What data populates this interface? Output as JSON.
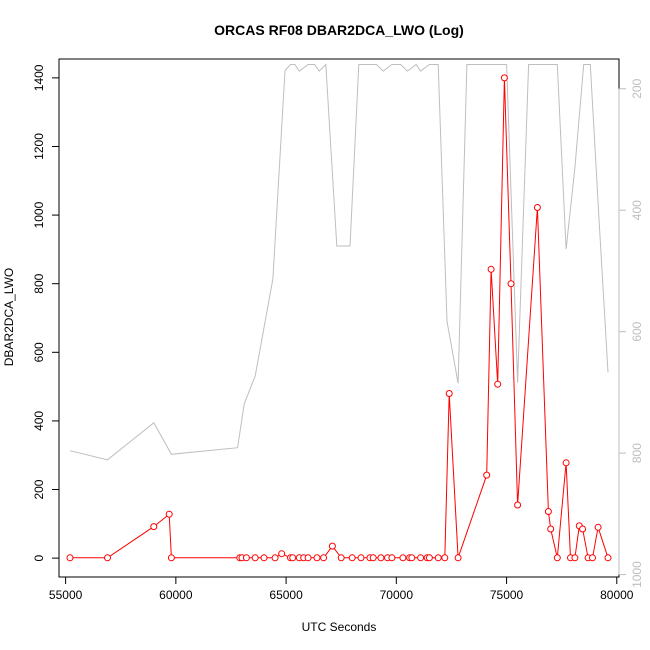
{
  "chart_data": {
    "type": "line",
    "title": "ORCAS RF08 DBAR2DCA_LWO (Log)",
    "xlabel": "UTC Seconds",
    "ylabel": "DBAR2DCA_LWO",
    "xlim": [
      54700,
      80100
    ],
    "ylim": [
      -55,
      1455
    ],
    "x_ticks": [
      "55000",
      "60000",
      "65000",
      "70000",
      "75000",
      "80000"
    ],
    "y_ticks": [
      "0",
      "200",
      "400",
      "600",
      "800",
      "1000",
      "1200",
      "1400"
    ],
    "y2_ticks": [
      "200",
      "400",
      "600",
      "800",
      "1000"
    ],
    "y2lim": [
      1004,
      151
    ],
    "colors": {
      "primary": "#ff0000",
      "secondary": "#bebebe"
    },
    "series": [
      {
        "x": [
          55200,
          56900,
          59000,
          59700,
          59800,
          62900,
          63000,
          63200,
          63600,
          64000,
          64500,
          64800,
          65200,
          65300,
          65600,
          65800,
          66000,
          66400,
          66700,
          67100,
          67500,
          68000,
          68400,
          68800,
          68950,
          69300,
          69600,
          69800,
          70300,
          70600,
          70700,
          71100,
          71400,
          71500,
          71900,
          72200,
          72400,
          72800,
          74100,
          74300,
          74600,
          74900,
          75200,
          75500,
          76400,
          76900,
          77000,
          77300,
          77700,
          77900,
          78100,
          78300,
          78450,
          78700,
          78900,
          79150,
          79600
        ],
        "values": [
          1,
          1,
          92,
          128,
          1,
          1,
          1,
          1,
          1,
          1,
          1,
          13,
          1,
          1,
          1,
          1,
          1,
          1,
          1,
          35,
          1,
          1,
          1,
          1,
          1,
          1,
          1,
          1,
          1,
          1,
          1,
          1,
          1,
          1,
          1,
          1,
          480,
          1,
          242,
          842,
          507,
          1400,
          800,
          155,
          1022,
          136,
          85,
          1,
          278,
          1,
          1,
          94,
          85,
          1,
          1,
          90,
          1
        ]
      },
      {
        "x": [
          55200,
          56900,
          59000,
          59800,
          62800,
          63100,
          63600,
          64400,
          64950,
          65200,
          65400,
          65600,
          66000,
          66300,
          66500,
          66800,
          67300,
          67900,
          68300,
          68700,
          69100,
          69400,
          69800,
          70200,
          70500,
          70900,
          71100,
          71500,
          71900,
          72300,
          72800,
          73200,
          73700,
          74100,
          74600,
          75000,
          75500,
          76000,
          76500,
          76900,
          77300,
          77700,
          78100,
          78500,
          78800,
          79200,
          79600
        ],
        "values": [
          796,
          811,
          750,
          802,
          791,
          719,
          673,
          513,
          170,
          160,
          160,
          171,
          160,
          160,
          171,
          160,
          459,
          459,
          160,
          160,
          160,
          171,
          160,
          160,
          171,
          160,
          171,
          160,
          160,
          583,
          685,
          160,
          160,
          160,
          160,
          160,
          684,
          160,
          160,
          160,
          160,
          464,
          330,
          160,
          160,
          420,
          667
        ]
      }
    ]
  }
}
